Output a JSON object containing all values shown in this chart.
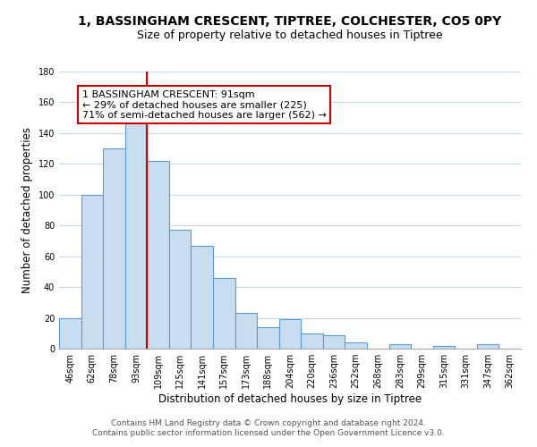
{
  "title": "1, BASSINGHAM CRESCENT, TIPTREE, COLCHESTER, CO5 0PY",
  "subtitle": "Size of property relative to detached houses in Tiptree",
  "xlabel": "Distribution of detached houses by size in Tiptree",
  "ylabel": "Number of detached properties",
  "bar_color": "#c8ddf0",
  "bar_edge_color": "#5b9bd5",
  "background_color": "#ffffff",
  "grid_color": "#c8d8e8",
  "categories": [
    "46sqm",
    "62sqm",
    "78sqm",
    "93sqm",
    "109sqm",
    "125sqm",
    "141sqm",
    "157sqm",
    "173sqm",
    "188sqm",
    "204sqm",
    "220sqm",
    "236sqm",
    "252sqm",
    "268sqm",
    "283sqm",
    "299sqm",
    "315sqm",
    "331sqm",
    "347sqm",
    "362sqm"
  ],
  "values": [
    20,
    100,
    130,
    147,
    122,
    77,
    67,
    46,
    23,
    14,
    19,
    10,
    9,
    4,
    0,
    3,
    0,
    2,
    0,
    3,
    0
  ],
  "ylim": [
    0,
    180
  ],
  "yticks": [
    0,
    20,
    40,
    60,
    80,
    100,
    120,
    140,
    160,
    180
  ],
  "vline_x_index": 3,
  "vline_color": "#cc0000",
  "annotation_text": "1 BASSINGHAM CRESCENT: 91sqm\n← 29% of detached houses are smaller (225)\n71% of semi-detached houses are larger (562) →",
  "annotation_box_color": "#ffffff",
  "annotation_box_edge": "#cc0000",
  "footer_line1": "Contains HM Land Registry data © Crown copyright and database right 2024.",
  "footer_line2": "Contains public sector information licensed under the Open Government Licence v3.0.",
  "title_fontsize": 10,
  "subtitle_fontsize": 9,
  "axis_label_fontsize": 8.5,
  "tick_fontsize": 7,
  "annotation_fontsize": 8,
  "footer_fontsize": 6.5
}
